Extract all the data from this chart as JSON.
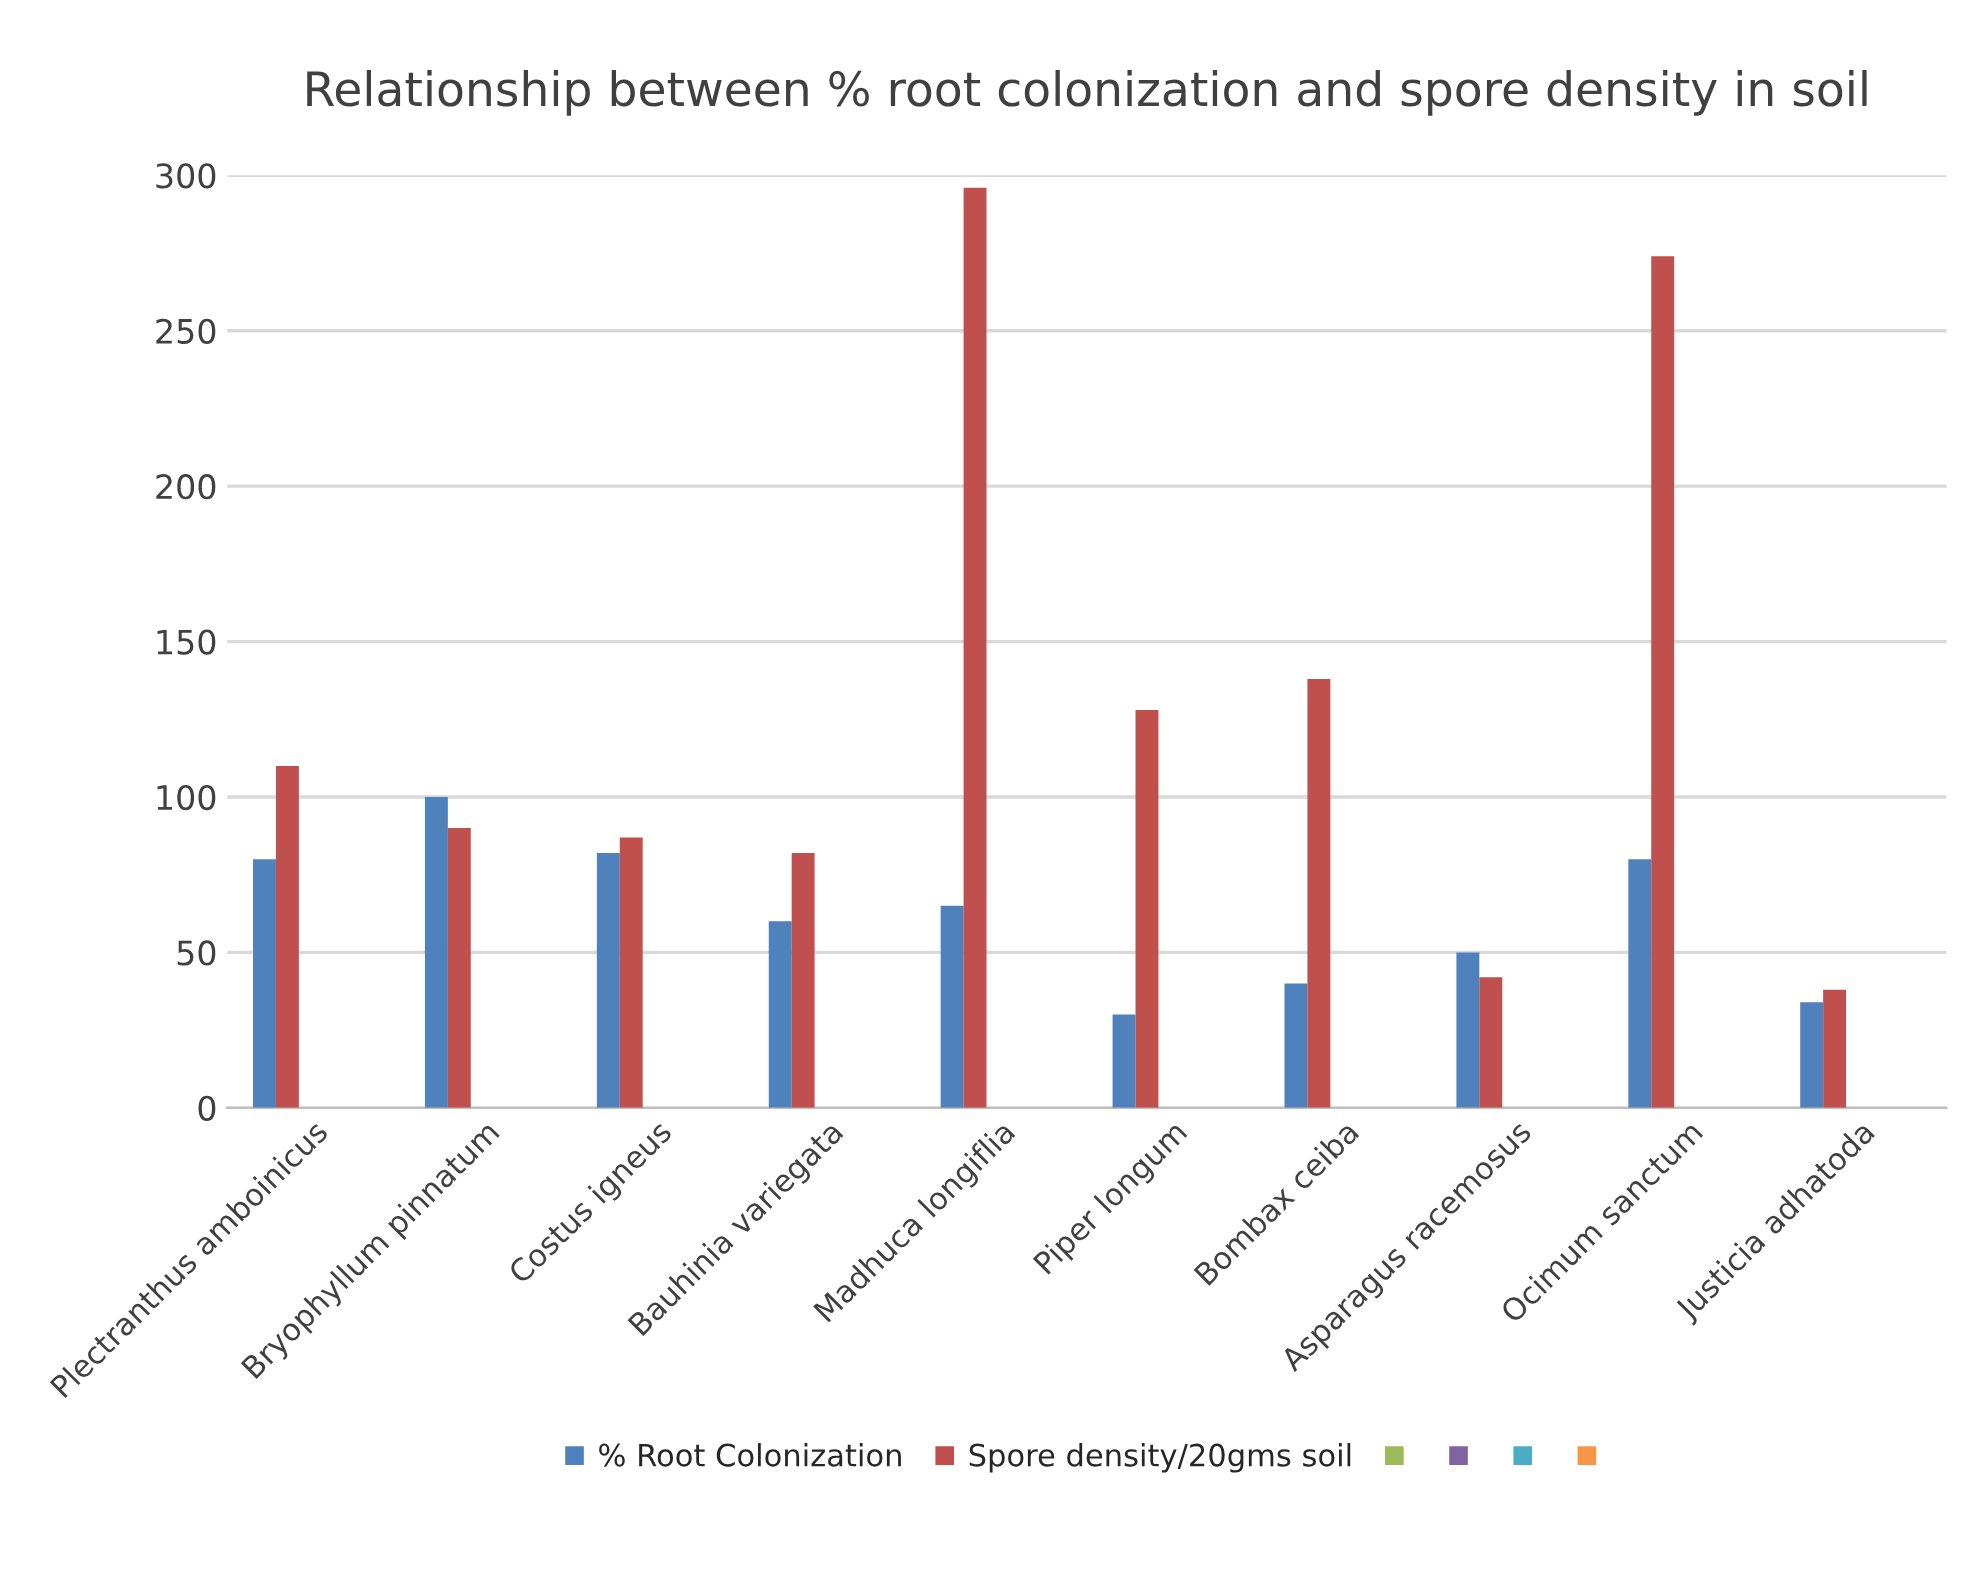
{
  "chart_data": {
    "type": "bar",
    "title": "Relationship between % root colonization and spore density in soil",
    "categories": [
      "Plectranthus amboinicus",
      "Bryophyllum pinnatum",
      "Costus igneus",
      "Bauhinia variegata",
      "Madhuca longiflia",
      "Piper longum",
      "Bombax ceiba",
      "Asparagus racemosus",
      "Ocimum sanctum",
      "Justicia adhatoda"
    ],
    "series": [
      {
        "name": "% Root Colonization",
        "color": "#4f81bd",
        "values": [
          80,
          100,
          82,
          60,
          65,
          30,
          40,
          50,
          80,
          34
        ]
      },
      {
        "name": "Spore density/20gms soil",
        "color": "#c0504d",
        "values": [
          110,
          90,
          87,
          82,
          296,
          128,
          138,
          42,
          274,
          38
        ]
      },
      {
        "color": "#9bbb59",
        "values": [
          null,
          null,
          null,
          null,
          null,
          null,
          null,
          null,
          null,
          null
        ]
      },
      {
        "color": "#8064a2",
        "values": [
          null,
          null,
          null,
          null,
          null,
          null,
          null,
          null,
          null,
          null
        ]
      },
      {
        "color": "#4bacc6",
        "values": [
          null,
          null,
          null,
          null,
          null,
          null,
          null,
          null,
          null,
          null
        ]
      },
      {
        "color": "#f79646",
        "values": [
          null,
          null,
          null,
          null,
          null,
          null,
          null,
          null,
          null,
          null
        ]
      }
    ],
    "ylim": [
      0,
      300
    ],
    "yticks": [
      0,
      50,
      100,
      150,
      200,
      250,
      300
    ],
    "grid": "y",
    "legend": "bottom"
  }
}
